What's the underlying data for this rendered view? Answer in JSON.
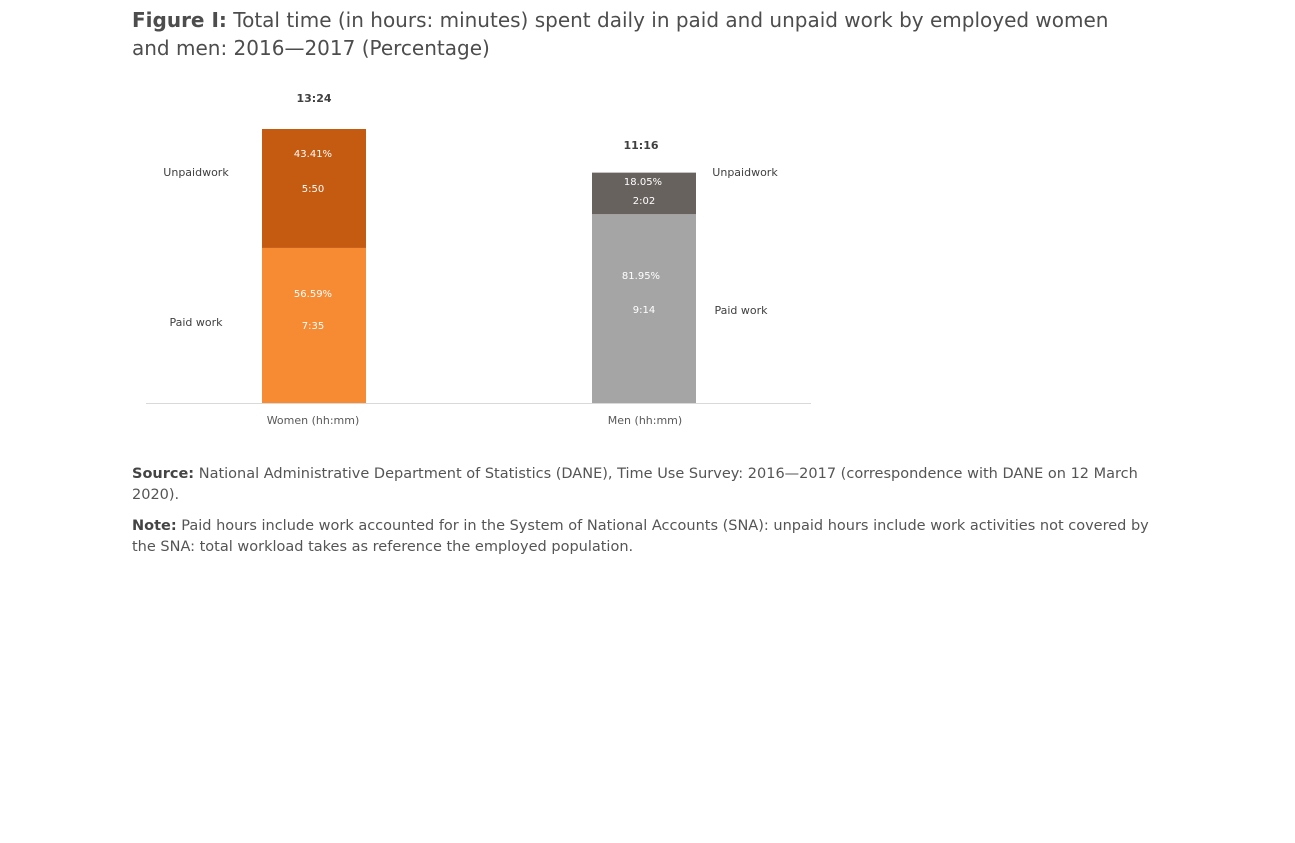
{
  "figure": {
    "label": "Figure I:",
    "title": "Total time (in hours: minutes) spent daily in paid and unpaid work by employed women and men: 2016—2017 (Percentage)"
  },
  "chart_data": {
    "type": "bar",
    "stacked": true,
    "categories": [
      "Women (hh:mm)",
      "Men (hh:mm)"
    ],
    "totals": [
      "13:24",
      "11:16"
    ],
    "series": [
      {
        "name": "Paid work",
        "percent": [
          56.59,
          81.95
        ],
        "percent_labels": [
          "56.59%",
          "81.95%"
        ],
        "time_labels": [
          "7:35",
          "9:14"
        ],
        "colors": [
          "#f68b33",
          "#a5a5a5"
        ]
      },
      {
        "name": "Unpaid work",
        "percent": [
          43.41,
          18.05
        ],
        "percent_labels": [
          "43.41%",
          "18.05%"
        ],
        "time_labels": [
          "5:50",
          "2:02"
        ],
        "colors": [
          "#c55a11",
          "#68625e"
        ]
      }
    ],
    "side_labels": {
      "women_unpaid": "Unpaidwork",
      "women_paid": "Paid work",
      "men_unpaid": "Unpaidwork",
      "men_paid": "Paid work"
    },
    "grid": false,
    "legend": "none"
  },
  "notes": {
    "source_label": "Source:",
    "source_text": "National Administrative Department of Statistics (DANE), Time Use Survey: 2016—2017 (correspondence with DANE on 12 March 2020).",
    "note_label": "Note:",
    "note_text": "Paid hours include work accounted for in the System of National Accounts (SNA): unpaid hours include work activities not covered by the SNA: total workload takes as reference the employed population."
  }
}
